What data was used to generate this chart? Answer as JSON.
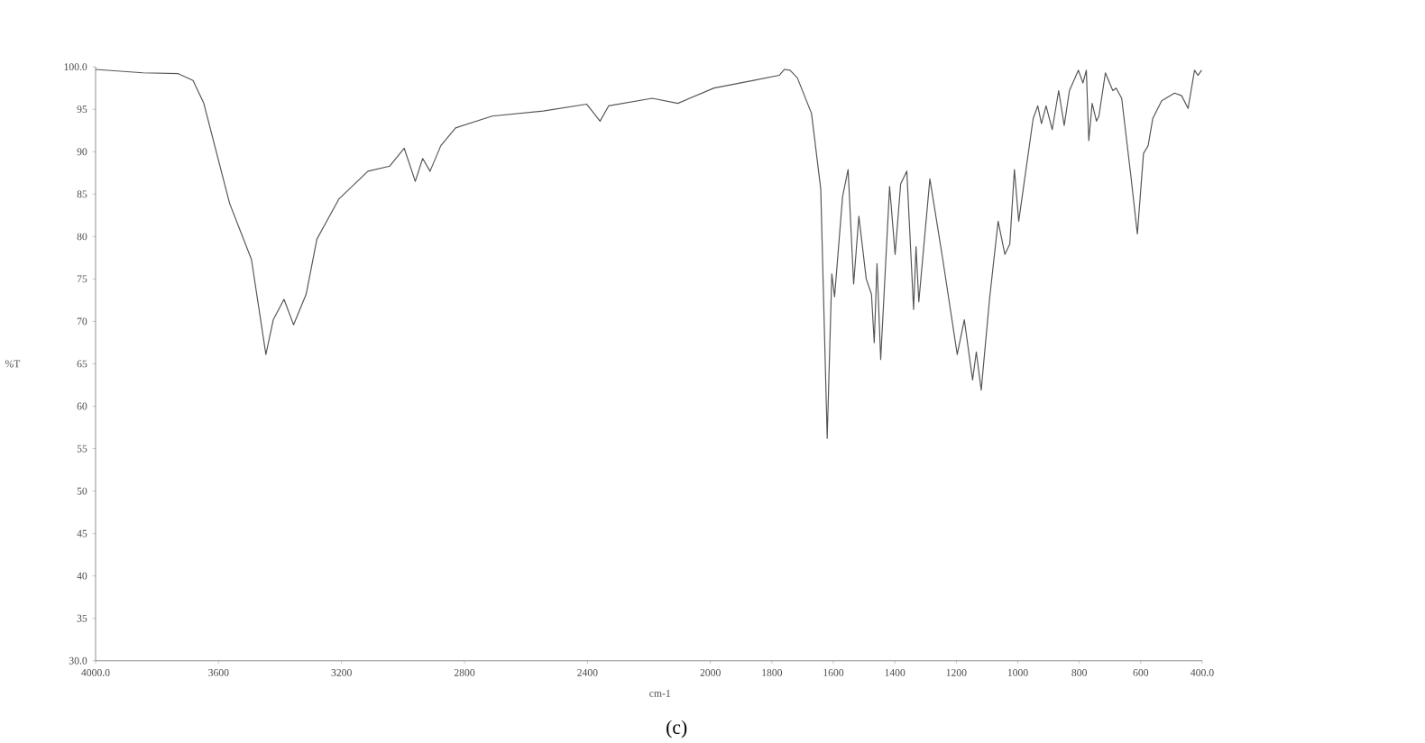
{
  "chart_data": {
    "type": "line",
    "xlabel": "cm-1",
    "ylabel": "%T",
    "annotations": [
      "(c)"
    ],
    "x": [
      4000,
      3846,
      3731,
      3683,
      3648,
      3564,
      3493,
      3446,
      3422,
      3387,
      3356,
      3315,
      3280,
      3209,
      3114,
      3043,
      2996,
      2960,
      2936,
      2912,
      2877,
      2829,
      2710,
      2544,
      2402,
      2359,
      2331,
      2189,
      2106,
      1988,
      1859,
      1776,
      1759,
      1741,
      1717,
      1694,
      1671,
      1641,
      1620,
      1605,
      1596,
      1570,
      1552,
      1534,
      1517,
      1493,
      1476,
      1467,
      1458,
      1446,
      1417,
      1399,
      1381,
      1361,
      1339,
      1331,
      1322,
      1286,
      1244,
      1197,
      1174,
      1147,
      1135,
      1119,
      1092,
      1064,
      1042,
      1026,
      1011,
      997,
      950,
      935,
      923,
      908,
      888,
      867,
      849,
      832,
      803,
      788,
      777,
      769,
      758,
      744,
      736,
      715,
      691,
      680,
      662,
      632,
      611,
      591,
      576,
      561,
      532,
      490,
      467,
      446,
      425,
      414,
      402
    ],
    "series": [
      {
        "color": "#555555",
        "values": [
          99.7,
          99.3,
          99.2,
          98.4,
          95.7,
          83.9,
          77.3,
          66.1,
          70.2,
          72.6,
          69.6,
          73.2,
          79.7,
          84.4,
          87.7,
          88.3,
          90.4,
          86.5,
          89.2,
          87.7,
          90.7,
          92.8,
          94.2,
          94.8,
          95.6,
          93.6,
          95.4,
          96.3,
          95.7,
          97.5,
          98.4,
          99.0,
          99.7,
          99.6,
          98.7,
          96.6,
          94.5,
          85.6,
          56.2,
          75.6,
          72.9,
          84.7,
          87.9,
          74.4,
          82.4,
          75.0,
          73.2,
          67.5,
          76.8,
          65.5,
          85.9,
          77.9,
          86.2,
          87.7,
          71.4,
          78.8,
          72.3,
          86.8,
          77.3,
          66.1,
          70.2,
          63.1,
          66.4,
          61.9,
          72.6,
          81.8,
          77.9,
          79.1,
          87.9,
          81.8,
          93.9,
          95.4,
          93.3,
          95.4,
          92.6,
          97.2,
          93.1,
          97.2,
          99.6,
          98.1,
          99.6,
          91.3,
          95.7,
          93.6,
          94.2,
          99.3,
          97.2,
          97.5,
          96.3,
          87.1,
          80.3,
          89.8,
          90.7,
          93.9,
          96.0,
          96.9,
          96.6,
          95.1,
          99.6,
          99.0,
          99.6
        ]
      }
    ],
    "xlim": [
      4000,
      400
    ],
    "xticks": [
      {
        "value": 4000,
        "label": "4000.0"
      },
      3600,
      3200,
      2800,
      2400,
      2000,
      1800,
      1600,
      1400,
      1200,
      1000,
      800,
      600,
      {
        "value": 400,
        "label": "400.0"
      }
    ],
    "ylim": [
      30,
      100
    ],
    "yticks": [
      {
        "value": 30,
        "label": "30.0"
      },
      35,
      40,
      45,
      50,
      55,
      60,
      65,
      70,
      75,
      80,
      85,
      90,
      95,
      {
        "value": 100,
        "label": "100.0"
      }
    ]
  }
}
